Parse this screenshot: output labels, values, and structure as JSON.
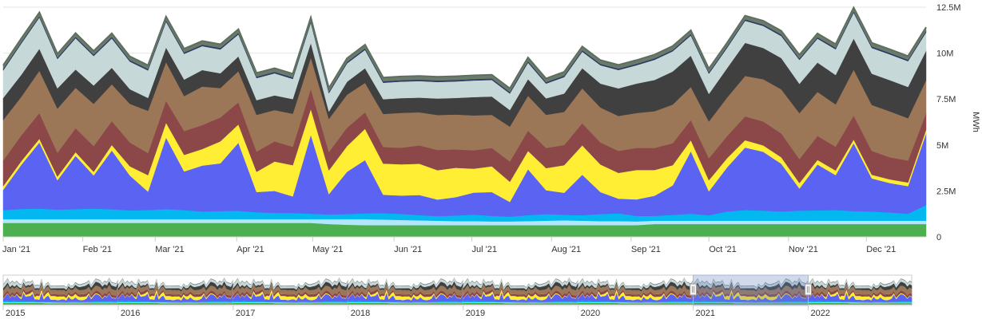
{
  "chart_data": {
    "type": "area",
    "stacked": true,
    "title": "",
    "xlabel": "",
    "ylabel": "MWh",
    "ylim": [
      0,
      12500000
    ],
    "grid": true,
    "y_ticks": [
      {
        "value": 0,
        "label": "0"
      },
      {
        "value": 2500000,
        "label": "2.5M"
      },
      {
        "value": 5000000,
        "label": "5M"
      },
      {
        "value": 7500000,
        "label": "7.5M"
      },
      {
        "value": 10000000,
        "label": "10M"
      },
      {
        "value": 12500000,
        "label": "12.5M"
      }
    ],
    "x_ticks": [
      {
        "week": 0,
        "label": "Jan '21"
      },
      {
        "week": 4.4,
        "label": "Feb '21"
      },
      {
        "week": 8.4,
        "label": "Mar '21"
      },
      {
        "week": 12.9,
        "label": "Apr '21"
      },
      {
        "week": 17.1,
        "label": "May '21"
      },
      {
        "week": 21.6,
        "label": "Jun '21"
      },
      {
        "week": 25.9,
        "label": "Jul '21"
      },
      {
        "week": 30.3,
        "label": "Aug '21"
      },
      {
        "week": 34.7,
        "label": "Sep '21"
      },
      {
        "week": 39,
        "label": "Oct '21"
      },
      {
        "week": 43.4,
        "label": "Nov '21"
      },
      {
        "week": 47.7,
        "label": "Dec '21"
      }
    ],
    "weeks": 52,
    "series": [
      {
        "color": "#4caf50",
        "values": [
          0.76,
          0.76,
          0.76,
          0.76,
          0.76,
          0.76,
          0.76,
          0.76,
          0.76,
          0.76,
          0.76,
          0.76,
          0.76,
          0.76,
          0.76,
          0.76,
          0.76,
          0.76,
          0.7,
          0.66,
          0.64,
          0.64,
          0.64,
          0.64,
          0.64,
          0.64,
          0.64,
          0.64,
          0.64,
          0.64,
          0.64,
          0.64,
          0.64,
          0.64,
          0.64,
          0.64,
          0.7,
          0.7,
          0.7,
          0.7,
          0.7,
          0.7,
          0.7,
          0.7,
          0.7,
          0.7,
          0.7,
          0.7,
          0.7,
          0.7,
          0.7,
          0.7
        ]
      },
      {
        "color": "#b3e5fc",
        "values": [
          0.2,
          0.2,
          0.2,
          0.2,
          0.2,
          0.2,
          0.2,
          0.2,
          0.2,
          0.2,
          0.2,
          0.2,
          0.2,
          0.2,
          0.2,
          0.2,
          0.2,
          0.2,
          0.26,
          0.3,
          0.32,
          0.3,
          0.28,
          0.26,
          0.24,
          0.22,
          0.22,
          0.2,
          0.2,
          0.22,
          0.24,
          0.26,
          0.24,
          0.22,
          0.22,
          0.2,
          0.18,
          0.18,
          0.18,
          0.18,
          0.18,
          0.18,
          0.18,
          0.18,
          0.18,
          0.18,
          0.18,
          0.18,
          0.18,
          0.18,
          0.18,
          0.18
        ]
      },
      {
        "color": "#03b8f0",
        "values": [
          0.5,
          0.56,
          0.58,
          0.52,
          0.55,
          0.58,
          0.54,
          0.48,
          0.5,
          0.55,
          0.5,
          0.42,
          0.44,
          0.46,
          0.38,
          0.34,
          0.34,
          0.3,
          0.26,
          0.28,
          0.32,
          0.35,
          0.33,
          0.28,
          0.25,
          0.3,
          0.35,
          0.3,
          0.26,
          0.32,
          0.36,
          0.3,
          0.3,
          0.38,
          0.42,
          0.3,
          0.26,
          0.32,
          0.38,
          0.3,
          0.5,
          0.58,
          0.55,
          0.5,
          0.55,
          0.56,
          0.58,
          0.52,
          0.5,
          0.45,
          0.38,
          0.85
        ]
      },
      {
        "color": "#5b63f2",
        "values": [
          1.1,
          2.4,
          3.6,
          1.6,
          2.9,
          1.8,
          3.2,
          1.9,
          1.0,
          3.9,
          2.1,
          2.5,
          2.6,
          3.7,
          1.1,
          1.2,
          0.9,
          4.3,
          1.1,
          2.3,
          2.9,
          1.0,
          1.0,
          1.1,
          0.9,
          1.0,
          1.2,
          1.3,
          0.8,
          2.5,
          1.3,
          1.2,
          2.2,
          1.2,
          0.8,
          0.9,
          1.1,
          1.6,
          3.4,
          1.3,
          2.4,
          3.4,
          3.2,
          2.6,
          1.2,
          2.5,
          1.9,
          3.7,
          1.8,
          1.6,
          1.5,
          3.9
        ]
      },
      {
        "color": "#ffee33",
        "values": [
          0.2,
          0.2,
          0.2,
          0.2,
          0.2,
          0.2,
          0.3,
          0.5,
          0.9,
          0.8,
          0.9,
          0.9,
          1.2,
          1.0,
          1.1,
          1.6,
          1.7,
          1.4,
          1.3,
          1.4,
          1.7,
          1.7,
          1.7,
          1.7,
          1.6,
          1.6,
          1.3,
          1.4,
          1.1,
          1.0,
          1.2,
          1.5,
          1.6,
          1.5,
          1.4,
          1.6,
          1.4,
          1.1,
          0.6,
          0.6,
          0.5,
          0.4,
          0.35,
          0.35,
          0.3,
          0.25,
          0.25,
          0.2,
          0.2,
          0.2,
          0.2,
          0.2
        ]
      },
      {
        "color": "#8c4848",
        "values": [
          1.4,
          1.4,
          1.4,
          1.3,
          1.3,
          1.4,
          1.3,
          1.3,
          1.2,
          1.2,
          1.3,
          1.3,
          1.3,
          1.2,
          1.1,
          1.1,
          1.0,
          1.1,
          1.0,
          1.0,
          0.9,
          0.9,
          0.9,
          1.0,
          1.1,
          1.0,
          1.0,
          1.0,
          1.1,
          1.1,
          1.1,
          1.1,
          1.2,
          1.2,
          1.2,
          1.2,
          1.2,
          1.2,
          1.1,
          1.2,
          1.2,
          1.3,
          1.3,
          1.3,
          1.3,
          1.3,
          1.3,
          1.3,
          1.3,
          1.2,
          1.2,
          0.9
        ]
      },
      {
        "color": "#9c7757",
        "values": [
          2.2,
          2.1,
          2.3,
          2.4,
          2.2,
          2.3,
          2.0,
          2.1,
          2.3,
          2.1,
          1.9,
          2.1,
          1.6,
          1.7,
          2.0,
          1.7,
          1.8,
          1.7,
          1.8,
          1.8,
          1.6,
          1.8,
          1.9,
          1.8,
          1.9,
          1.9,
          1.9,
          1.8,
          1.9,
          1.9,
          1.8,
          1.8,
          1.9,
          1.9,
          1.9,
          1.9,
          2.0,
          2.1,
          1.8,
          2.0,
          2.1,
          2.2,
          2.3,
          2.4,
          2.5,
          2.4,
          2.3,
          2.5,
          2.5,
          2.5,
          2.3,
          1.8
        ]
      },
      {
        "color": "#404040",
        "values": [
          1.2,
          1.2,
          1.2,
          1.1,
          1.0,
          1.0,
          0.9,
          0.8,
          0.7,
          0.8,
          0.9,
          0.9,
          0.8,
          0.8,
          0.8,
          0.8,
          0.8,
          0.8,
          0.4,
          0.7,
          0.8,
          0.8,
          0.8,
          0.8,
          0.9,
          0.9,
          1.0,
          1.0,
          0.9,
          0.9,
          0.9,
          1.0,
          1.1,
          1.3,
          1.5,
          1.6,
          1.7,
          1.8,
          1.7,
          1.5,
          1.6,
          1.8,
          1.7,
          1.7,
          1.6,
          1.6,
          1.6,
          1.7,
          1.7,
          1.7,
          1.7,
          1.6
        ]
      },
      {
        "color": "#c7d8d8",
        "values": [
          1.5,
          1.7,
          1.7,
          1.6,
          1.7,
          1.6,
          1.6,
          1.5,
          1.5,
          1.4,
          1.4,
          1.3,
          1.3,
          1.2,
          1.2,
          1.2,
          1.1,
          1.1,
          1.0,
          1.0,
          1.0,
          0.9,
          0.9,
          0.9,
          0.9,
          0.9,
          0.9,
          0.9,
          0.9,
          0.9,
          0.8,
          0.9,
          0.9,
          1.0,
          1.0,
          1.0,
          1.1,
          1.1,
          1.1,
          1.1,
          1.1,
          1.2,
          1.2,
          1.2,
          1.3,
          1.3,
          1.4,
          1.4,
          1.4,
          1.4,
          1.4,
          1.0
        ]
      },
      {
        "color": "#2e3b63",
        "values": [
          0.08,
          0.08,
          0.08,
          0.08,
          0.08,
          0.08,
          0.08,
          0.08,
          0.08,
          0.08,
          0.08,
          0.08,
          0.08,
          0.08,
          0.08,
          0.08,
          0.08,
          0.08,
          0.08,
          0.08,
          0.08,
          0.08,
          0.08,
          0.08,
          0.08,
          0.08,
          0.08,
          0.08,
          0.08,
          0.08,
          0.08,
          0.08,
          0.08,
          0.08,
          0.08,
          0.08,
          0.08,
          0.08,
          0.08,
          0.08,
          0.08,
          0.08,
          0.08,
          0.08,
          0.08,
          0.08,
          0.08,
          0.08,
          0.08,
          0.08,
          0.08,
          0.08
        ]
      },
      {
        "color": "#6b7b6b",
        "values": [
          0.2,
          0.2,
          0.2,
          0.2,
          0.2,
          0.2,
          0.2,
          0.2,
          0.2,
          0.2,
          0.2,
          0.2,
          0.2,
          0.2,
          0.2,
          0.2,
          0.2,
          0.2,
          0.2,
          0.2,
          0.2,
          0.2,
          0.2,
          0.2,
          0.2,
          0.2,
          0.2,
          0.2,
          0.2,
          0.2,
          0.2,
          0.2,
          0.2,
          0.2,
          0.2,
          0.2,
          0.2,
          0.2,
          0.2,
          0.2,
          0.2,
          0.2,
          0.2,
          0.2,
          0.2,
          0.2,
          0.2,
          0.2,
          0.2,
          0.2,
          0.2,
          0.2
        ]
      }
    ],
    "value_scale": 1000000,
    "navigator": {
      "range_start": 2015,
      "range_end": 2022.9,
      "selected_start": 2021,
      "selected_end": 2022,
      "labels": [
        "2015",
        "2016",
        "2017",
        "2018",
        "2019",
        "2020",
        "2021",
        "2022"
      ]
    }
  }
}
